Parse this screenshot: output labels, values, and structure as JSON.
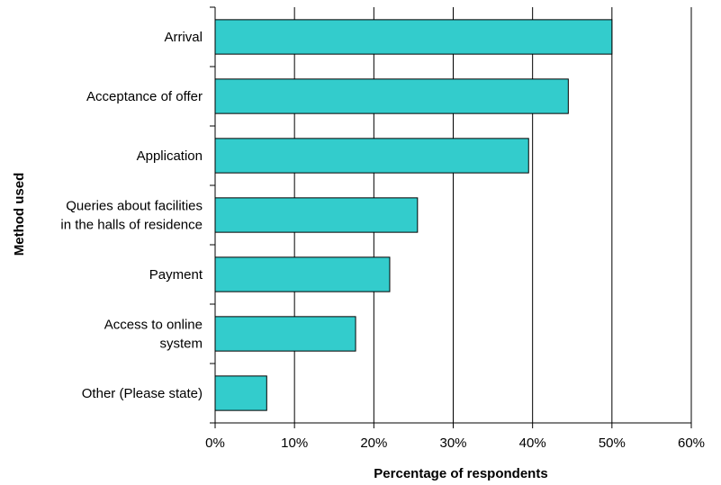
{
  "chart_data": {
    "type": "bar",
    "orientation": "horizontal",
    "categories": [
      [
        "Arrival"
      ],
      [
        "Acceptance of offer"
      ],
      [
        "Application"
      ],
      [
        "Queries about facilities",
        "in the halls of residence"
      ],
      [
        "Payment"
      ],
      [
        "Access to online",
        "system"
      ],
      [
        "Other (Please state)"
      ]
    ],
    "values": [
      50,
      44.5,
      39.5,
      25.5,
      22,
      17.7,
      6.5
    ],
    "xlabel": "Percentage of respondents",
    "ylabel": "Method used",
    "xlim": [
      0,
      60
    ],
    "x_ticks": [
      "0%",
      "10%",
      "20%",
      "30%",
      "40%",
      "50%",
      "60%"
    ],
    "grid": "vertical",
    "colors": {
      "bar": "#33cccc",
      "bar_stroke": "#000000",
      "grid": "#000000"
    }
  }
}
